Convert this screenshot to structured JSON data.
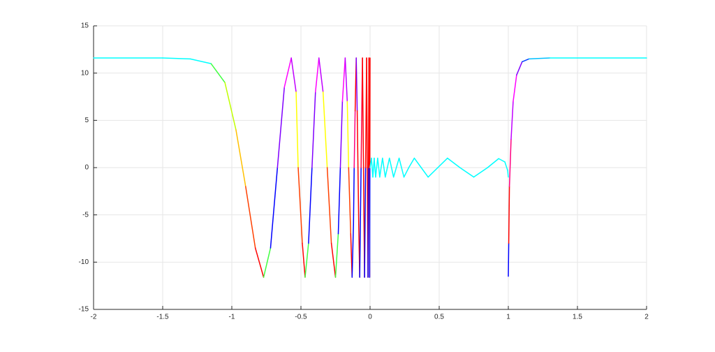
{
  "chart_data": {
    "type": "line",
    "grid": true,
    "xlim": [
      -2,
      2
    ],
    "xticks": [
      -2,
      -1.5,
      -1,
      -0.5,
      0,
      0.5,
      1,
      1.5,
      2
    ],
    "ylim": [
      -15,
      15
    ],
    "yticks": [
      -15,
      -10,
      -5,
      0,
      5,
      10,
      15
    ],
    "series": [
      {
        "x": [
          -2,
          -1.5,
          -1.3,
          -1.15,
          -1.05,
          -0.97,
          -0.9,
          -0.83,
          -0.77,
          -0.72,
          -0.67,
          -0.62,
          -0.57,
          -0.535,
          -0.52,
          -0.49,
          -0.47,
          -0.445,
          -0.42,
          -0.395,
          -0.37,
          -0.34,
          -0.31,
          -0.28,
          -0.25,
          -0.23,
          -0.215,
          -0.2,
          -0.18,
          -0.165,
          -0.155,
          -0.14,
          -0.13,
          -0.12,
          -0.115,
          -0.108,
          -0.1,
          -0.093,
          -0.0875,
          -0.082,
          -0.075,
          -0.065,
          -0.055,
          -0.0475,
          -0.04,
          -0.0325,
          -0.025,
          -0.02,
          -0.015,
          -0.0115,
          -0.008,
          -0.0055,
          -0.003,
          -0.0015,
          0
        ],
        "values": [
          11.6,
          11.6,
          11.5,
          11,
          9,
          4,
          -2,
          -8.5,
          -11.6,
          -8.5,
          0,
          8.5,
          11.6,
          8,
          0,
          -8,
          -11.6,
          -8,
          0,
          8,
          11.6,
          8,
          0,
          -8,
          -11.6,
          -7,
          0,
          7,
          11.6,
          7,
          0,
          -7,
          -11.6,
          -6,
          0,
          6,
          11.6,
          6,
          0,
          -6,
          -11.6,
          0,
          11.6,
          0,
          -11.6,
          0,
          11.6,
          0,
          -11.6,
          0,
          11.6,
          0,
          -11.6,
          0,
          11.6
        ],
        "colors": [
          "#00ffff",
          "#00ffff",
          "#00ffff",
          "#40ff40",
          "#c0ff00",
          "#ffc000",
          "#ff4000",
          "#ff0000",
          "#40ff40",
          "#0000ff",
          "#8000ff",
          "#ff00ff",
          "#c000ff",
          "#ffff00",
          "#ff4000",
          "#ff0000",
          "#40ff40",
          "#0000ff",
          "#8000ff",
          "#ff00ff",
          "#c000ff",
          "#ffff00",
          "#ff4000",
          "#ff0000",
          "#40ff40",
          "#0000ff",
          "#8000ff",
          "#ff00ff",
          "#c000ff",
          "#ffff00",
          "#ff4000",
          "#ff0000",
          "#0000ff",
          "#0000ff",
          "#ff0080",
          "#ff0000",
          "#8000ff",
          "#ff0000",
          "#ff0000",
          "#ff0000",
          "#0000ff",
          "#ff0040",
          "#ff0000",
          "#ff0000",
          "#0000ff",
          "#ff0000",
          "#ff0000",
          "#ff0000",
          "#0000ff",
          "#ff0000",
          "#ff0000",
          "#ff0000",
          "#0000ff",
          "#ff0000",
          "#ff0000"
        ]
      },
      {
        "x": [
          0,
          0.01,
          0.02,
          0.03,
          0.04,
          0.055,
          0.07,
          0.09,
          0.11,
          0.14,
          0.17,
          0.21,
          0.245,
          0.28,
          0.32,
          0.37,
          0.42,
          0.49,
          0.56,
          0.65,
          0.75,
          0.85,
          0.93,
          0.975,
          0.995,
          1
        ],
        "values": [
          0,
          1,
          -1,
          1,
          -1,
          1,
          -1,
          1,
          -1,
          1,
          -1,
          1,
          -1,
          0,
          1,
          0,
          -1,
          0,
          1,
          0,
          -1,
          0,
          0.95,
          0.6,
          -0.3,
          -1
        ],
        "color": "#00ffff"
      },
      {
        "x": [
          1,
          1.003,
          1.008,
          1.02,
          1.035,
          1.06,
          1.1,
          1.15,
          1.3,
          2
        ],
        "values": [
          -11.5,
          -8,
          -2,
          3,
          7,
          9.8,
          11.2,
          11.5,
          11.6,
          11.6
        ],
        "colors": [
          "#0000ff",
          "#ff0000",
          "#ff0080",
          "#c000ff",
          "#ff00ff",
          "#8000ff",
          "#0040ff",
          "#00c0ff",
          "#00ffff",
          "#00ffff"
        ]
      }
    ]
  }
}
